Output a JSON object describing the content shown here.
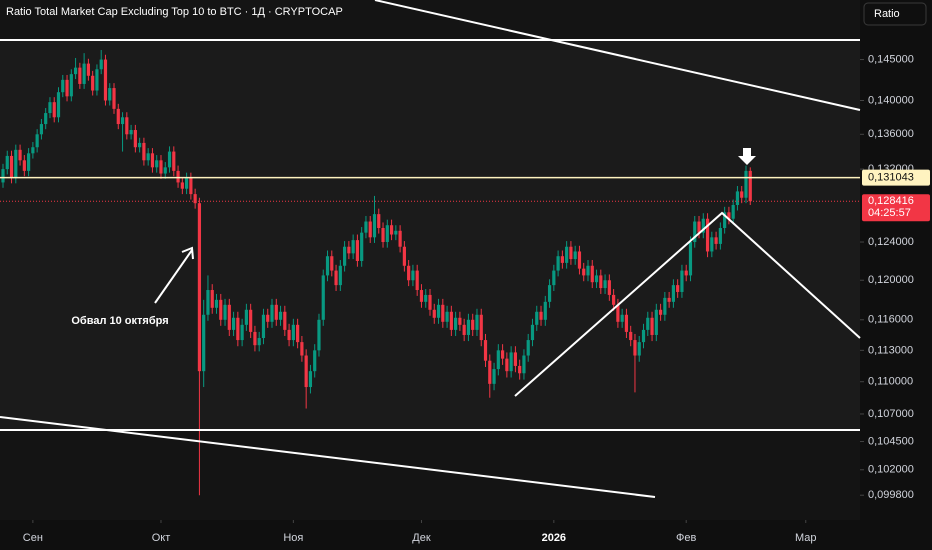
{
  "chart_data": {
    "type": "candlestick",
    "title": "Ratio Total Market Cap Excluding Top 10 to BTC · 1Д · CRYPTOCAP",
    "scale_button": "Ratio",
    "annotation": "Обвал 10 октября",
    "up_color": "#089981",
    "down_color": "#f23645",
    "log_scale": true,
    "ylim": [
      0.0977,
      0.1526
    ],
    "yticks": [
      {
        "value": 0.145,
        "label": "0,145000"
      },
      {
        "value": 0.14,
        "label": "0,140000"
      },
      {
        "value": 0.136,
        "label": "0,136000"
      },
      {
        "value": 0.132,
        "label": "0,132000"
      },
      {
        "value": 0.124,
        "label": "0,124000"
      },
      {
        "value": 0.12,
        "label": "0,120000"
      },
      {
        "value": 0.116,
        "label": "0,116000"
      },
      {
        "value": 0.113,
        "label": "0,113000"
      },
      {
        "value": 0.11,
        "label": "0,110000"
      },
      {
        "value": 0.107,
        "label": "0,107000"
      },
      {
        "value": 0.1045,
        "label": "0,104500"
      },
      {
        "value": 0.102,
        "label": "0,102000"
      },
      {
        "value": 0.0998,
        "label": "0,099800"
      }
    ],
    "xlim": [
      -0.7,
      200.7
    ],
    "xticks": [
      {
        "value": 7,
        "label": "Сен"
      },
      {
        "value": 37,
        "label": "Окт"
      },
      {
        "value": 68,
        "label": "Ноя"
      },
      {
        "value": 98,
        "label": "Дек"
      },
      {
        "value": 129,
        "label": "2026"
      },
      {
        "value": 160,
        "label": "Фев"
      },
      {
        "value": 188,
        "label": "Мар"
      }
    ],
    "level": {
      "value": 0.131043,
      "label": "0,131043",
      "color": "#fff3c0"
    },
    "last_price_label": "0,128416",
    "countdown": "04:25:57",
    "open": [
      0.1305,
      0.132,
      0.1335,
      0.131,
      0.1342,
      0.133,
      0.1318,
      0.1338,
      0.1345,
      0.136,
      0.1372,
      0.1385,
      0.1398,
      0.138,
      0.141,
      0.1425,
      0.1405,
      0.1432,
      0.144,
      0.142,
      0.1445,
      0.143,
      0.1412,
      0.1438,
      0.145,
      0.14,
      0.1415,
      0.139,
      0.1372,
      0.138,
      0.136,
      0.1365,
      0.1345,
      0.135,
      0.133,
      0.1338,
      0.1322,
      0.133,
      0.1315,
      0.1322,
      0.134,
      0.1318,
      0.1305,
      0.1298,
      0.131,
      0.1292,
      0.1282,
      0.111,
      0.1165,
      0.119,
      0.1172,
      0.118,
      0.116,
      0.1175,
      0.115,
      0.1162,
      0.114,
      0.1155,
      0.117,
      0.1148,
      0.1135,
      0.1142,
      0.1165,
      0.1158,
      0.1175,
      0.116,
      0.1168,
      0.115,
      0.114,
      0.1155,
      0.1138,
      0.1125,
      0.1095,
      0.111,
      0.113,
      0.116,
      0.1205,
      0.1225,
      0.121,
      0.1195,
      0.1215,
      0.1235,
      0.1228,
      0.1242,
      0.122,
      0.125,
      0.1262,
      0.1245,
      0.127,
      0.1255,
      0.124,
      0.1258,
      0.1248,
      0.1252,
      0.1235,
      0.1215,
      0.12,
      0.121,
      0.119,
      0.1178,
      0.1185,
      0.117,
      0.1162,
      0.1175,
      0.1158,
      0.1168,
      0.115,
      0.1162,
      0.1155,
      0.1145,
      0.116,
      0.115,
      0.1165,
      0.114,
      0.112,
      0.1098,
      0.1112,
      0.113,
      0.1122,
      0.111,
      0.1128,
      0.1115,
      0.1108,
      0.1125,
      0.114,
      0.1155,
      0.1168,
      0.116,
      0.1178,
      0.1195,
      0.121,
      0.1225,
      0.1218,
      0.1235,
      0.1222,
      0.123,
      0.1212,
      0.1205,
      0.1215,
      0.1198,
      0.1205,
      0.1192,
      0.12,
      0.1185,
      0.1175,
      0.1158,
      0.1165,
      0.1148,
      0.114,
      0.1125,
      0.1138,
      0.115,
      0.1162,
      0.1145,
      0.117,
      0.1165,
      0.1182,
      0.1178,
      0.1195,
      0.1188,
      0.121,
      0.1205,
      0.124,
      0.1262,
      0.125,
      0.1265,
      0.123,
      0.1245,
      0.1238,
      0.1255,
      0.1272,
      0.1265,
      0.128,
      0.1295,
      0.1288,
      0.1318
    ],
    "high": [
      0.1326,
      0.1341,
      0.1341,
      0.1348,
      0.1348,
      0.1336,
      0.1344,
      0.1351,
      0.1366,
      0.1378,
      0.1391,
      0.1404,
      0.1404,
      0.1416,
      0.1431,
      0.1431,
      0.1438,
      0.1452,
      0.1446,
      0.1458,
      0.1451,
      0.1436,
      0.1444,
      0.1462,
      0.1456,
      0.1421,
      0.1421,
      0.1396,
      0.1386,
      0.1386,
      0.1371,
      0.1371,
      0.1356,
      0.1356,
      0.1344,
      0.1344,
      0.1336,
      0.1336,
      0.1328,
      0.1346,
      0.1346,
      0.1324,
      0.1311,
      0.1316,
      0.1316,
      0.1298,
      0.1288,
      0.118,
      0.1205,
      0.1196,
      0.1186,
      0.1186,
      0.1181,
      0.1181,
      0.1168,
      0.1168,
      0.1161,
      0.1176,
      0.1176,
      0.1154,
      0.1148,
      0.1171,
      0.1171,
      0.1181,
      0.1181,
      0.1174,
      0.1174,
      0.1156,
      0.1161,
      0.1161,
      0.1144,
      0.1131,
      0.1116,
      0.1136,
      0.1166,
      0.1211,
      0.1231,
      0.1231,
      0.1216,
      0.1221,
      0.1241,
      0.1241,
      0.1248,
      0.1248,
      0.1256,
      0.1268,
      0.1268,
      0.129,
      0.1276,
      0.1261,
      0.1264,
      0.1264,
      0.1258,
      0.1258,
      0.1241,
      0.1221,
      0.1216,
      0.1216,
      0.1196,
      0.1191,
      0.1191,
      0.1176,
      0.1181,
      0.1181,
      0.1174,
      0.1174,
      0.1168,
      0.1168,
      0.1161,
      0.1166,
      0.1166,
      0.1171,
      0.1171,
      0.1146,
      0.1126,
      0.1118,
      0.1136,
      0.1136,
      0.1128,
      0.1134,
      0.1134,
      0.1121,
      0.1131,
      0.1146,
      0.1161,
      0.1174,
      0.1174,
      0.1184,
      0.1201,
      0.1216,
      0.1231,
      0.1231,
      0.1241,
      0.1241,
      0.1236,
      0.1236,
      0.1218,
      0.1221,
      0.1221,
      0.1211,
      0.1211,
      0.1206,
      0.1206,
      0.1191,
      0.1181,
      0.1171,
      0.1171,
      0.1154,
      0.1146,
      0.1144,
      0.1156,
      0.1168,
      0.1168,
      0.1176,
      0.1176,
      0.1188,
      0.1188,
      0.1201,
      0.1201,
      0.1216,
      0.1216,
      0.1246,
      0.1268,
      0.1268,
      0.1271,
      0.1271,
      0.1251,
      0.1251,
      0.1261,
      0.1278,
      0.1278,
      0.1286,
      0.1301,
      0.1301,
      0.1324,
      0.1322
    ],
    "low": [
      0.1299,
      0.1314,
      0.1304,
      0.1304,
      0.1324,
      0.1312,
      0.1312,
      0.1332,
      0.1339,
      0.1354,
      0.1366,
      0.1379,
      0.1374,
      0.1374,
      0.1404,
      0.1399,
      0.1399,
      0.1426,
      0.1414,
      0.1414,
      0.1424,
      0.1406,
      0.1406,
      0.1432,
      0.1394,
      0.1394,
      0.1384,
      0.1366,
      0.134,
      0.1354,
      0.1354,
      0.1339,
      0.1339,
      0.1324,
      0.1324,
      0.1316,
      0.1316,
      0.1309,
      0.1309,
      0.1316,
      0.1312,
      0.1299,
      0.1292,
      0.1292,
      0.1286,
      0.1276,
      0.0998,
      0.1095,
      0.1159,
      0.1166,
      0.1166,
      0.1154,
      0.1154,
      0.1144,
      0.1144,
      0.1134,
      0.1134,
      0.1149,
      0.1142,
      0.1129,
      0.1129,
      0.1136,
      0.1152,
      0.1152,
      0.1154,
      0.1154,
      0.1144,
      0.1134,
      0.1134,
      0.1132,
      0.1119,
      0.1075,
      0.1089,
      0.1104,
      0.1124,
      0.1154,
      0.1199,
      0.1204,
      0.1189,
      0.1189,
      0.1209,
      0.1222,
      0.1222,
      0.1214,
      0.1214,
      0.1244,
      0.1239,
      0.1239,
      0.1249,
      0.1234,
      0.1234,
      0.1242,
      0.1242,
      0.1229,
      0.1209,
      0.1194,
      0.1194,
      0.1184,
      0.1172,
      0.1172,
      0.1164,
      0.1156,
      0.1156,
      0.1152,
      0.1152,
      0.1144,
      0.1144,
      0.1149,
      0.1139,
      0.1139,
      0.1144,
      0.1144,
      0.1134,
      0.1114,
      0.1085,
      0.1092,
      0.1106,
      0.1116,
      0.1104,
      0.1104,
      0.1109,
      0.1102,
      0.1102,
      0.1119,
      0.1134,
      0.1149,
      0.1154,
      0.1154,
      0.1172,
      0.1189,
      0.1204,
      0.1212,
      0.1212,
      0.1216,
      0.1216,
      0.1206,
      0.1199,
      0.1199,
      0.1192,
      0.1192,
      0.1186,
      0.1186,
      0.1179,
      0.1169,
      0.1152,
      0.1152,
      0.1142,
      0.1134,
      0.109,
      0.1119,
      0.1132,
      0.1144,
      0.1139,
      0.1139,
      0.1159,
      0.1159,
      0.1172,
      0.1172,
      0.1182,
      0.1182,
      0.1199,
      0.1199,
      0.1234,
      0.1244,
      0.1244,
      0.1224,
      0.1224,
      0.1232,
      0.1232,
      0.1249,
      0.1259,
      0.1259,
      0.1274,
      0.1282,
      0.1282,
      0.128
    ],
    "close": [
      0.132,
      0.1335,
      0.131,
      0.1342,
      0.133,
      0.1318,
      0.1338,
      0.1345,
      0.136,
      0.1372,
      0.1385,
      0.1398,
      0.138,
      0.141,
      0.1425,
      0.1405,
      0.1432,
      0.144,
      0.142,
      0.1445,
      0.143,
      0.1412,
      0.1438,
      0.145,
      0.14,
      0.1415,
      0.139,
      0.1372,
      0.138,
      0.136,
      0.1365,
      0.1345,
      0.135,
      0.133,
      0.1338,
      0.1322,
      0.133,
      0.1315,
      0.1322,
      0.134,
      0.1318,
      0.1305,
      0.1298,
      0.131,
      0.1292,
      0.1282,
      0.111,
      0.1165,
      0.119,
      0.1172,
      0.118,
      0.116,
      0.1175,
      0.115,
      0.1162,
      0.114,
      0.1155,
      0.117,
      0.1148,
      0.1135,
      0.1142,
      0.1165,
      0.1158,
      0.1175,
      0.116,
      0.1168,
      0.115,
      0.114,
      0.1155,
      0.1138,
      0.1125,
      0.1095,
      0.111,
      0.113,
      0.116,
      0.1205,
      0.1225,
      0.121,
      0.1195,
      0.1215,
      0.1235,
      0.1228,
      0.1242,
      0.122,
      0.125,
      0.1262,
      0.1245,
      0.127,
      0.1255,
      0.124,
      0.1258,
      0.1248,
      0.1252,
      0.1235,
      0.1215,
      0.12,
      0.121,
      0.119,
      0.1178,
      0.1185,
      0.117,
      0.1162,
      0.1175,
      0.1158,
      0.1168,
      0.115,
      0.1162,
      0.1155,
      0.1145,
      0.116,
      0.115,
      0.1165,
      0.114,
      0.112,
      0.1098,
      0.1112,
      0.113,
      0.1122,
      0.111,
      0.1128,
      0.1115,
      0.1108,
      0.1125,
      0.114,
      0.1155,
      0.1168,
      0.116,
      0.1178,
      0.1195,
      0.121,
      0.1225,
      0.1218,
      0.1235,
      0.1222,
      0.123,
      0.1212,
      0.1205,
      0.1215,
      0.1198,
      0.1205,
      0.1192,
      0.12,
      0.1185,
      0.1175,
      0.1158,
      0.1165,
      0.1148,
      0.114,
      0.1125,
      0.1138,
      0.115,
      0.1162,
      0.1145,
      0.117,
      0.1165,
      0.1182,
      0.1178,
      0.1195,
      0.1188,
      0.121,
      0.1205,
      0.124,
      0.1262,
      0.125,
      0.1265,
      0.123,
      0.1245,
      0.1238,
      0.1255,
      0.1272,
      0.1265,
      0.128,
      0.1295,
      0.1288,
      0.1318,
      0.128416
    ]
  }
}
